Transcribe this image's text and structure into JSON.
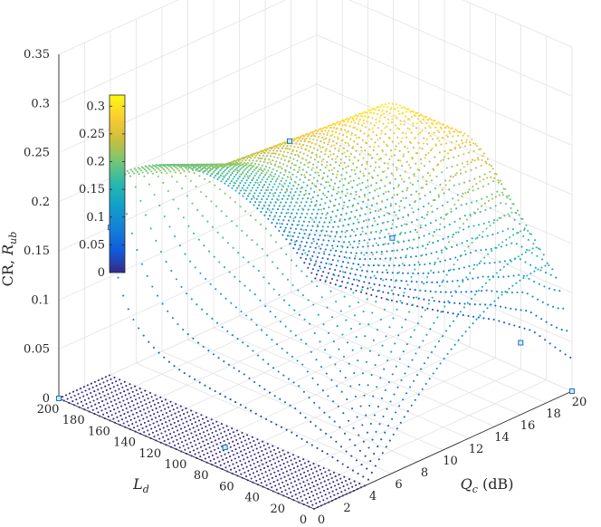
{
  "chart_data": {
    "type": "scatter3d",
    "title": "",
    "zlabel": {
      "main": "CR, ",
      "var": "R",
      "sub": "ub"
    },
    "ylabel": {
      "var": "L",
      "sub": "d"
    },
    "xlabel": {
      "var": "Q",
      "sub": "c",
      "unit": " (dB)"
    },
    "xlim": [
      0,
      20
    ],
    "ylim": [
      0,
      200
    ],
    "zlim": [
      0,
      0.35
    ],
    "x_ticks": [
      "0",
      "2",
      "4",
      "6",
      "8",
      "10",
      "12",
      "14",
      "16",
      "18",
      "20"
    ],
    "y_ticks": [
      "0",
      "20",
      "40",
      "60",
      "80",
      "100",
      "120",
      "140",
      "160",
      "180",
      "200"
    ],
    "z_ticks": [
      "0",
      "0.05",
      "0.1",
      "0.15",
      "0.2",
      "0.25",
      "0.3",
      "0.35"
    ],
    "grid": true,
    "colormap": "parula",
    "colorbar": {
      "range": [
        0,
        0.32
      ],
      "ticks": [
        "0",
        "0.05",
        "0.1",
        "0.15",
        "0.2",
        "0.25",
        "0.3"
      ]
    },
    "zero_region": {
      "x": [
        0,
        4
      ],
      "y": [
        0,
        200
      ],
      "value": 0
    },
    "peak_ridge": [
      {
        "Ld": 200,
        "Qc_peak": 4.5,
        "CR_peak": 0.2
      },
      {
        "Ld": 150,
        "Qc_peak": 6.5,
        "CR_peak": 0.22
      },
      {
        "Ld": 100,
        "Qc_peak": 8.5,
        "CR_peak": 0.27
      },
      {
        "Ld": 60,
        "Qc_peak": 11.0,
        "CR_peak": 0.31
      },
      {
        "Ld": 30,
        "Qc_peak": 14.0,
        "CR_peak": 0.28
      },
      {
        "Ld": 0,
        "Qc_peak": 18.0,
        "CR_peak": 0.14
      }
    ],
    "markers": [
      {
        "Qc": 0,
        "Ld": 200,
        "CR": 0
      },
      {
        "Qc": 2,
        "Ld": 90,
        "CR": 0
      },
      {
        "Qc": 4,
        "Ld": 200,
        "CR": 0.15
      },
      {
        "Qc": 8,
        "Ld": 100,
        "CR": 0.27
      },
      {
        "Qc": 12,
        "Ld": 60,
        "CR": 0.17
      },
      {
        "Qc": 20,
        "Ld": 0,
        "CR": 0
      },
      {
        "Qc": 18,
        "Ld": 20,
        "CR": 0.05
      }
    ]
  }
}
